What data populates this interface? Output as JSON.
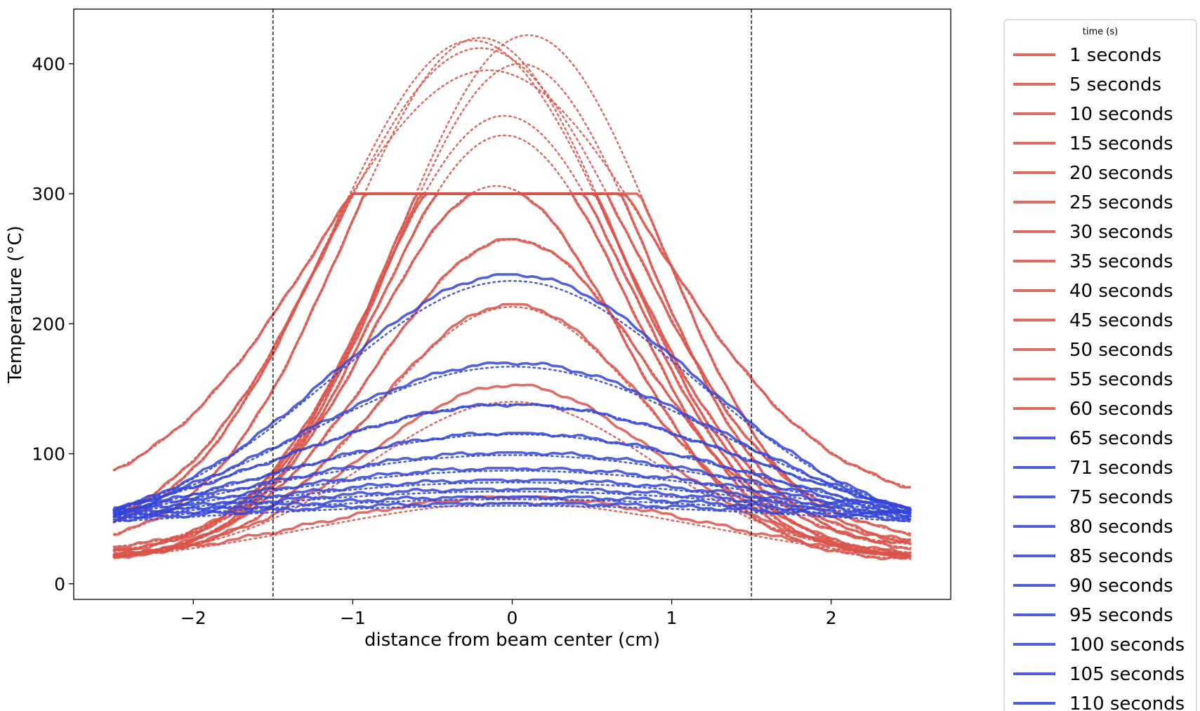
{
  "chart_data": {
    "type": "line",
    "title": "",
    "xlabel": "distance from beam center (cm)",
    "ylabel": "Temperature (°C)",
    "xlim": [
      -2.75,
      2.75
    ],
    "ylim": [
      -12,
      442
    ],
    "x_ticks": [
      -2,
      -1,
      0,
      1,
      2
    ],
    "x_tick_labels": [
      "−2",
      "−1",
      "0",
      "1",
      "2"
    ],
    "y_ticks": [
      0,
      100,
      200,
      300,
      400
    ],
    "y_tick_labels": [
      "0",
      "100",
      "200",
      "300",
      "400"
    ],
    "grid": false,
    "vertical_reference_lines": [
      -1.5,
      1.5
    ],
    "x_range": [
      -2.5,
      2.5
    ],
    "clip_level": 300,
    "line_styles": {
      "measured": "solid",
      "fit": "dotted"
    },
    "colors": {
      "heating": "#d9534a",
      "cooling": "#3344d6"
    },
    "legend": {
      "title": "time (s)",
      "placement": "outside right",
      "entries": [
        "1 seconds",
        "5 seconds",
        "10 seconds",
        "15 seconds",
        "20 seconds",
        "25 seconds",
        "30 seconds",
        "35 seconds",
        "40 seconds",
        "45 seconds",
        "50 seconds",
        "55 seconds",
        "60 seconds",
        "65 seconds",
        "71 seconds",
        "75 seconds",
        "80 seconds",
        "85 seconds",
        "90 seconds",
        "95 seconds",
        "100 seconds",
        "105 seconds",
        "110 seconds"
      ]
    },
    "series": [
      {
        "name": "1 seconds",
        "phase": "heating",
        "peak": 67,
        "center": 0,
        "width": 1.25,
        "edge": 14,
        "fit_peak": 62
      },
      {
        "name": "5 seconds",
        "phase": "heating",
        "peak": 153,
        "center": 0,
        "width": 0.9,
        "edge": 20,
        "fit_peak": 140
      },
      {
        "name": "10 seconds",
        "phase": "heating",
        "peak": 215,
        "center": 0,
        "width": 0.85,
        "edge": 18,
        "fit_peak": 213
      },
      {
        "name": "15 seconds",
        "phase": "heating",
        "peak": 265,
        "center": 0,
        "width": 0.85,
        "edge": 18,
        "fit_peak": 265
      },
      {
        "name": "20 seconds",
        "phase": "heating",
        "peak": 300,
        "center": -0.1,
        "width": 0.78,
        "edge": 18,
        "fit_peak": 306
      },
      {
        "name": "25 seconds",
        "phase": "heating",
        "peak": 300,
        "center": -0.05,
        "width": 0.78,
        "edge": 20,
        "fit_peak": 345
      },
      {
        "name": "30 seconds",
        "phase": "heating",
        "peak": 300,
        "center": -0.05,
        "width": 0.8,
        "edge": 22,
        "fit_peak": 360
      },
      {
        "name": "35 seconds",
        "phase": "heating",
        "peak": 300,
        "center": 0.05,
        "width": 0.8,
        "edge": 24,
        "fit_peak": 400
      },
      {
        "name": "40 seconds",
        "phase": "heating",
        "peak": 300,
        "center": 0.1,
        "width": 0.82,
        "edge": 26,
        "fit_peak": 422
      },
      {
        "name": "45 seconds",
        "phase": "heating",
        "peak": 300,
        "center": -0.2,
        "width": 0.85,
        "edge": 28,
        "fit_peak": 420
      },
      {
        "name": "50 seconds",
        "phase": "heating",
        "peak": 300,
        "center": -0.25,
        "width": 0.9,
        "edge": 30,
        "fit_peak": 418
      },
      {
        "name": "55 seconds",
        "phase": "heating",
        "peak": 300,
        "center": -0.2,
        "width": 0.95,
        "edge": 32,
        "fit_peak": 412
      },
      {
        "name": "60 seconds",
        "phase": "heating",
        "peak": 300,
        "center": -0.15,
        "width": 1.05,
        "edge": 60,
        "fit_peak": 395
      },
      {
        "name": "65 seconds",
        "phase": "cooling",
        "peak": 238,
        "center": 0,
        "width": 1.15,
        "edge": 38,
        "fit_peak": 233
      },
      {
        "name": "71 seconds",
        "phase": "cooling",
        "peak": 170,
        "center": 0,
        "width": 1.3,
        "edge": 36,
        "fit_peak": 167
      },
      {
        "name": "75 seconds",
        "phase": "cooling",
        "peak": 138,
        "center": 0,
        "width": 1.45,
        "edge": 34,
        "fit_peak": 138
      },
      {
        "name": "80 seconds",
        "phase": "cooling",
        "peak": 116,
        "center": 0,
        "width": 1.55,
        "edge": 33,
        "fit_peak": 115
      },
      {
        "name": "85 seconds",
        "phase": "cooling",
        "peak": 101,
        "center": 0,
        "width": 1.7,
        "edge": 32,
        "fit_peak": 99
      },
      {
        "name": "90 seconds",
        "phase": "cooling",
        "peak": 89,
        "center": 0,
        "width": 1.85,
        "edge": 31,
        "fit_peak": 87
      },
      {
        "name": "95 seconds",
        "phase": "cooling",
        "peak": 80,
        "center": 0,
        "width": 2.0,
        "edge": 30,
        "fit_peak": 78
      },
      {
        "name": "100 seconds",
        "phase": "cooling",
        "peak": 73,
        "center": 0,
        "width": 2.2,
        "edge": 29,
        "fit_peak": 71
      },
      {
        "name": "105 seconds",
        "phase": "cooling",
        "peak": 67,
        "center": 0,
        "width": 2.4,
        "edge": 28,
        "fit_peak": 65
      },
      {
        "name": "110 seconds",
        "phase": "cooling",
        "peak": 62,
        "center": 0,
        "width": 2.6,
        "edge": 27,
        "fit_peak": 60
      }
    ]
  }
}
